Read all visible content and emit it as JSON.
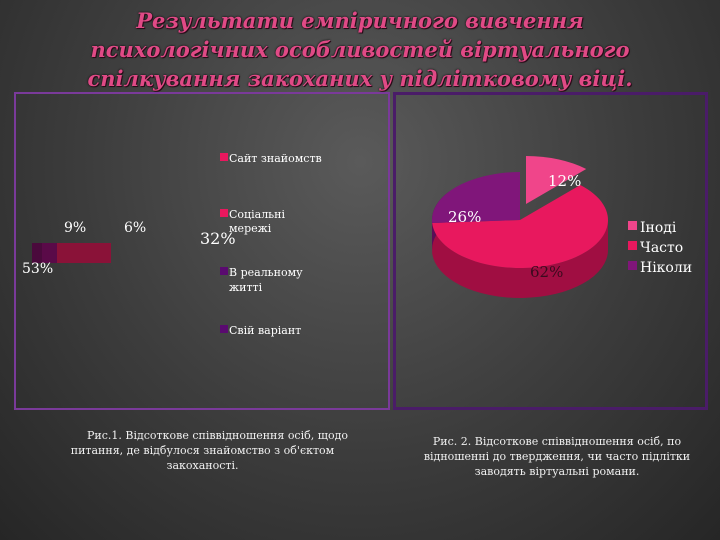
{
  "title": "Результати емпіричного вивчення психологічних особливостей віртуального спілкування закоханих у підлітковому віці.",
  "chart_data": [
    {
      "type": "bar",
      "categories": [
        "Сайт знайомств",
        "Соціальні мережі",
        "В реальному житті",
        "Свій варіант"
      ],
      "values": [
        53,
        32,
        9,
        6
      ],
      "data_labels": [
        "53%",
        "32%",
        "9%",
        "6%"
      ],
      "colors": [
        "#b01a46",
        "#e8185e",
        "#4a0a3c",
        "#6a0a50"
      ],
      "legend": [
        "Сайт знайомств",
        "Соціальні мережі",
        "В реальному житті",
        "Свій варіант"
      ],
      "legend_position": "right",
      "caption": "Рис.1. Відсоткове співвідношення осіб, щодо питання, де відбулося знайомство з об'єктом закоханості."
    },
    {
      "type": "pie",
      "categories": [
        "Іноді",
        "Часто",
        "Ніколи"
      ],
      "values": [
        12,
        62,
        26
      ],
      "data_labels": [
        "12%",
        "62%",
        "26%"
      ],
      "colors": [
        "#f0458a",
        "#e8185e",
        "#80167a"
      ],
      "legend_position": "right",
      "caption": "Рис. 2. Відсоткове співвідношення осіб, по відношенні до твердження, чи часто підлітки заводять віртуальні романи."
    }
  ]
}
